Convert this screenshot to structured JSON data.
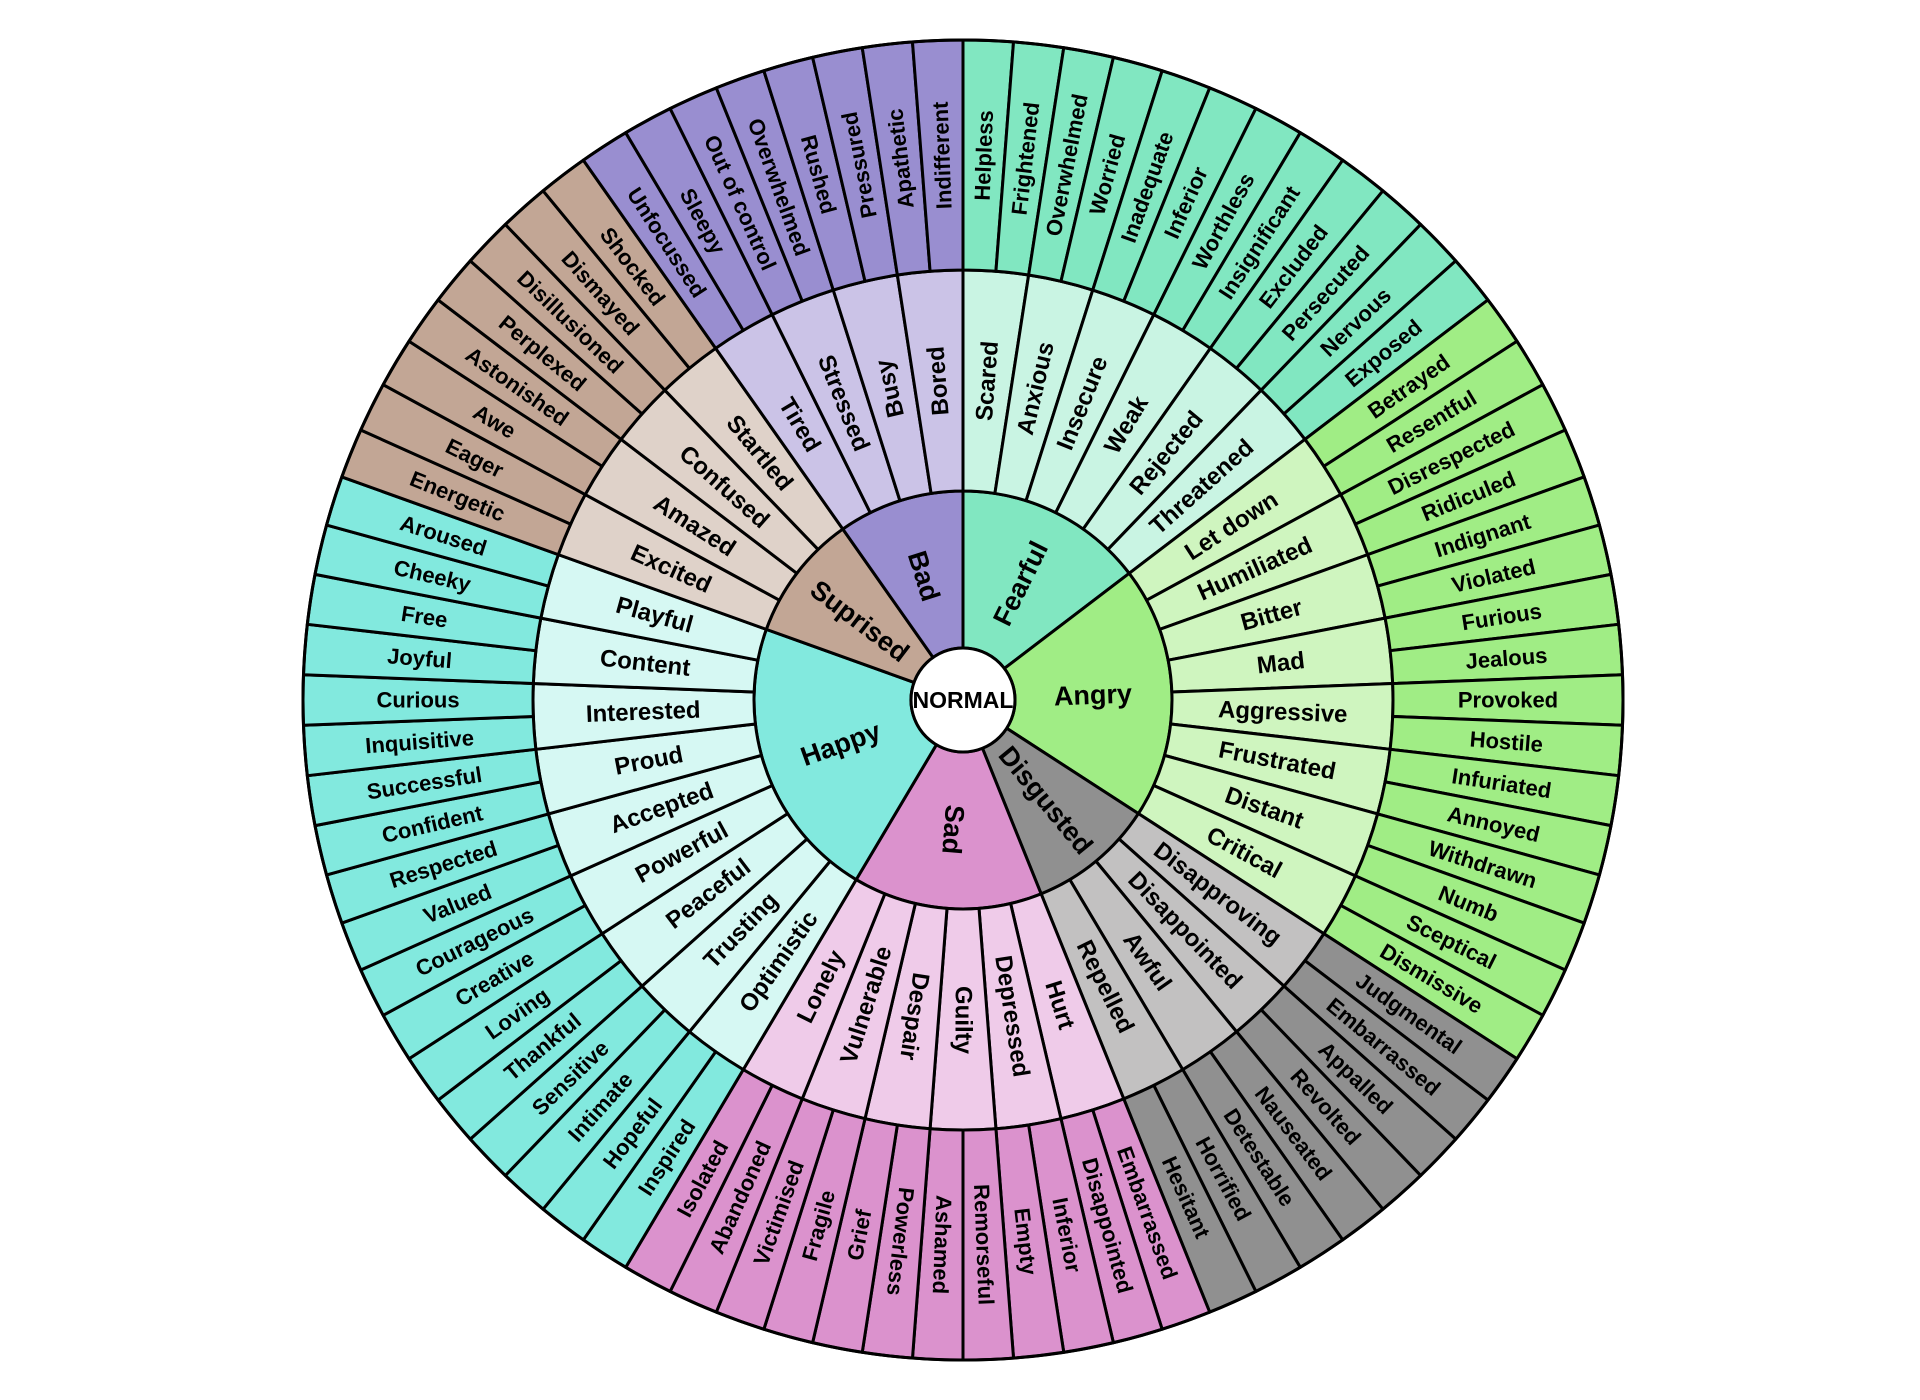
{
  "center": {
    "label": "NORMAL",
    "fill": "#FFFFFF"
  },
  "colors": {
    "background": "#FFFFFF",
    "stroke": "#000000",
    "text": "#000000"
  },
  "sections": [
    {
      "label": "Fearful",
      "color": "#81E7C1",
      "light_color": "#C9F4E3",
      "middle": [
        {
          "label": "Scared",
          "children": [
            "Helpless",
            "Frightened"
          ]
        },
        {
          "label": "Anxious",
          "children": [
            "Overwhelmed",
            "Worried"
          ]
        },
        {
          "label": "Insecure",
          "children": [
            "Inadequate",
            "Inferior"
          ]
        },
        {
          "label": "Weak",
          "children": [
            "Worthless",
            "Insignificant"
          ]
        },
        {
          "label": "Rejected",
          "children": [
            "Excluded",
            "Persecuted"
          ]
        },
        {
          "label": "Threatened",
          "children": [
            "Nervous",
            "Exposed"
          ]
        }
      ]
    },
    {
      "label": "Angry",
      "color": "#A0ED85",
      "light_color": "#CFF5BF",
      "middle": [
        {
          "label": "Let down",
          "children": [
            "Betrayed",
            "Resentful"
          ]
        },
        {
          "label": "Humiliated",
          "children": [
            "Disrespected",
            "Ridiculed"
          ]
        },
        {
          "label": "Bitter",
          "children": [
            "Indignant",
            "Violated"
          ]
        },
        {
          "label": "Mad",
          "children": [
            "Furious",
            "Jealous"
          ]
        },
        {
          "label": "Aggressive",
          "children": [
            "Provoked",
            "Hostile"
          ]
        },
        {
          "label": "Frustrated",
          "children": [
            "Infuriated",
            "Annoyed"
          ]
        },
        {
          "label": "Distant",
          "children": [
            "Withdrawn",
            "Numb"
          ]
        },
        {
          "label": "Critical",
          "children": [
            "Sceptical",
            "Dismissive"
          ]
        }
      ]
    },
    {
      "label": "Disgusted",
      "color": "#909090",
      "light_color": "#C2C1C1",
      "middle": [
        {
          "label": "Disapproving",
          "children": [
            "Judgmental",
            "Embarrassed"
          ]
        },
        {
          "label": "Disappointed",
          "children": [
            "Appalled",
            "Revolted"
          ]
        },
        {
          "label": "Awful",
          "children": [
            "Nauseated",
            "Detestable"
          ]
        },
        {
          "label": "Repelled",
          "children": [
            "Horrified",
            "Hesitant"
          ]
        }
      ]
    },
    {
      "label": "Sad",
      "color": "#DB92CD",
      "light_color": "#EFCBE9",
      "middle": [
        {
          "label": "Hurt",
          "children": [
            "Embarrassed",
            "Disappointed"
          ]
        },
        {
          "label": "Depressed",
          "children": [
            "Inferior",
            "Empty"
          ]
        },
        {
          "label": "Guilty",
          "children": [
            "Remorseful",
            "Ashamed"
          ]
        },
        {
          "label": "Despair",
          "children": [
            "Powerless",
            "Grief"
          ]
        },
        {
          "label": "Vulnerable",
          "children": [
            "Fragile",
            "Victimised"
          ]
        },
        {
          "label": "Lonely",
          "children": [
            "Abandoned",
            "Isolated"
          ]
        }
      ]
    },
    {
      "label": "Happy",
      "color": "#82E9DE",
      "light_color": "#D6F8F3",
      "middle": [
        {
          "label": "Optimistic",
          "children": [
            "Inspired",
            "Hopeful"
          ]
        },
        {
          "label": "Trusting",
          "children": [
            "Intimate",
            "Sensitive"
          ]
        },
        {
          "label": "Peaceful",
          "children": [
            "Thankful",
            "Loving"
          ]
        },
        {
          "label": "Powerful",
          "children": [
            "Creative",
            "Courageous"
          ]
        },
        {
          "label": "Accepted",
          "children": [
            "Valued",
            "Respected"
          ]
        },
        {
          "label": "Proud",
          "children": [
            "Confident",
            "Successful"
          ]
        },
        {
          "label": "Interested",
          "children": [
            "Inquisitive",
            "Curious"
          ]
        },
        {
          "label": "Content",
          "children": [
            "Joyful",
            "Free"
          ]
        },
        {
          "label": "Playful",
          "children": [
            "Cheeky",
            "Aroused"
          ]
        }
      ]
    },
    {
      "label": "Suprised",
      "color": "#C2A695",
      "light_color": "#DFD2C9",
      "middle": [
        {
          "label": "Excited",
          "children": [
            "Energetic",
            "Eager"
          ]
        },
        {
          "label": "Amazed",
          "children": [
            "Awe",
            "Astonished"
          ]
        },
        {
          "label": "Confused",
          "children": [
            "Perplexed",
            "Disillusioned"
          ]
        },
        {
          "label": "Startled",
          "children": [
            "Dismayed",
            "Shocked"
          ]
        }
      ]
    },
    {
      "label": "Bad",
      "color": "#998ED0",
      "light_color": "#CBC3E7",
      "middle": [
        {
          "label": "Tired",
          "children": [
            "Unfocussed",
            "Sleepy"
          ]
        },
        {
          "label": "Stressed",
          "children": [
            "Out of control",
            "Overwhelmed"
          ]
        },
        {
          "label": "Busy",
          "children": [
            "Rushed",
            "Pressured"
          ]
        },
        {
          "label": "Bored",
          "children": [
            "Apathetic",
            "Indifferent"
          ]
        }
      ]
    }
  ]
}
